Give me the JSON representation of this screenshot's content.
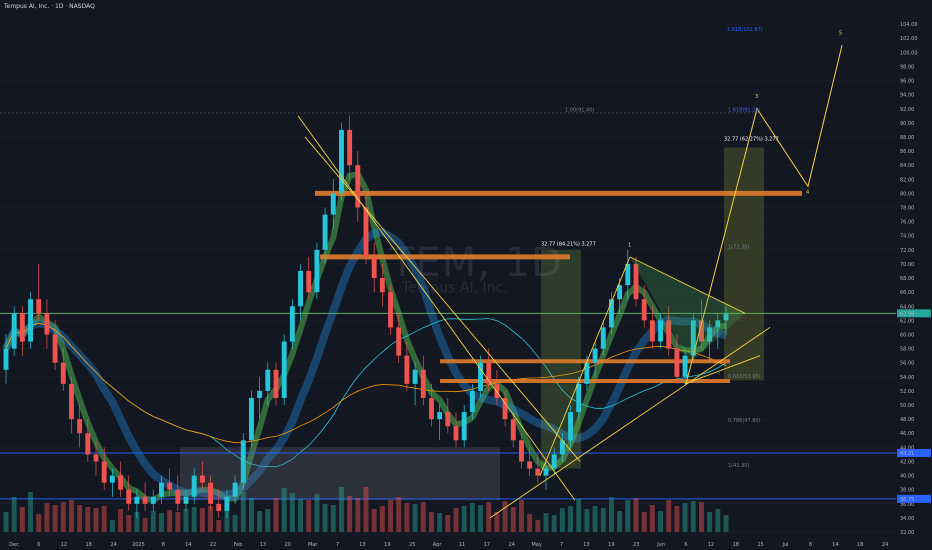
{
  "header": {
    "title": "Tempus AI, Inc. · 1D · NASDAQ"
  },
  "watermark": {
    "symbol": "TEM, 1D",
    "name": "Tempus AI, Inc."
  },
  "price_badges": {
    "current": "62.98",
    "blue_level": "43.21",
    "support": "36.75"
  },
  "annotations": {
    "fib_top": "1.618(102.87)",
    "fib_one": "1.00(91.40)",
    "target_label": "32.77 (62.27%) 3,277",
    "left_box_label": "32.77 (84.21%) 3,277",
    "wave1": "1",
    "wave3": "3",
    "wave4": "4",
    "wave5": "5",
    "fib_1618_right": "1.618(91.28)",
    "fib_right_72": "1(72.38)",
    "fib_right_53": "0.618(53.95)",
    "fib_right_48": "0.786(47.80)",
    "fib_right_41": "1(41.30)"
  },
  "chart_data": {
    "type": "candlestick",
    "ylim": [
      32,
      106
    ],
    "y_ticks": [
      "104.00",
      "102.00",
      "100.00",
      "98.00",
      "96.00",
      "94.00",
      "92.00",
      "90.00",
      "88.00",
      "86.00",
      "84.00",
      "82.00",
      "80.00",
      "78.00",
      "76.00",
      "74.00",
      "72.00",
      "70.00",
      "68.00",
      "66.00",
      "64.00",
      "62.00",
      "60.00",
      "58.00",
      "56.00",
      "54.00",
      "52.00",
      "50.00",
      "48.00",
      "46.00",
      "44.00",
      "42.00",
      "40.00",
      "38.00",
      "36.00",
      "34.00",
      "32.00"
    ],
    "x_ticks": [
      "Dec",
      "6",
      "12",
      "18",
      "24",
      "2025",
      "8",
      "14",
      "22",
      "Feb",
      "13",
      "20",
      "Mar",
      "7",
      "13",
      "19",
      "25",
      "Apr",
      "11",
      "17",
      "24",
      "May",
      "7",
      "13",
      "19",
      "23",
      "Jun",
      "6",
      "12",
      "18",
      "25",
      "Jul",
      "8",
      "14",
      "18",
      "24"
    ],
    "candles": [
      [
        55,
        60,
        53,
        58
      ],
      [
        58,
        64,
        57,
        63
      ],
      [
        63,
        64,
        57,
        59
      ],
      [
        59,
        66,
        58,
        65
      ],
      [
        65,
        70,
        62,
        63
      ],
      [
        63,
        65,
        58,
        60
      ],
      [
        60,
        62,
        55,
        56
      ],
      [
        56,
        58,
        52,
        53
      ],
      [
        53,
        54,
        46,
        48
      ],
      [
        48,
        50,
        44,
        46
      ],
      [
        46,
        48,
        42,
        43
      ],
      [
        43,
        45,
        40,
        42
      ],
      [
        42,
        44,
        38,
        39
      ],
      [
        39,
        41,
        37,
        40
      ],
      [
        40,
        42,
        37,
        38
      ],
      [
        38,
        40,
        35,
        36
      ],
      [
        36,
        38,
        34,
        37
      ],
      [
        37,
        39,
        35,
        36
      ],
      [
        36,
        38,
        35,
        37
      ],
      [
        37,
        40,
        36,
        39
      ],
      [
        39,
        41,
        37,
        38
      ],
      [
        38,
        40,
        35,
        36
      ],
      [
        36,
        38,
        35,
        37
      ],
      [
        37,
        41,
        36,
        40
      ],
      [
        40,
        42,
        38,
        39
      ],
      [
        39,
        40,
        35,
        36
      ],
      [
        36,
        38,
        34,
        35
      ],
      [
        35,
        38,
        34,
        37
      ],
      [
        37,
        40,
        36,
        39
      ],
      [
        39,
        46,
        38,
        45
      ],
      [
        45,
        52,
        44,
        51
      ],
      [
        51,
        54,
        48,
        52
      ],
      [
        52,
        56,
        50,
        55
      ],
      [
        55,
        56,
        50,
        51
      ],
      [
        51,
        60,
        50,
        59
      ],
      [
        59,
        65,
        58,
        64
      ],
      [
        64,
        70,
        62,
        69
      ],
      [
        69,
        71,
        65,
        66
      ],
      [
        66,
        73,
        65,
        72
      ],
      [
        72,
        78,
        70,
        77
      ],
      [
        77,
        82,
        75,
        80
      ],
      [
        80,
        90,
        79,
        89
      ],
      [
        89,
        91,
        82,
        84
      ],
      [
        84,
        86,
        76,
        78
      ],
      [
        78,
        80,
        70,
        71
      ],
      [
        71,
        73,
        66,
        68
      ],
      [
        68,
        70,
        64,
        66
      ],
      [
        66,
        67,
        60,
        61
      ],
      [
        61,
        63,
        56,
        57
      ],
      [
        57,
        59,
        52,
        53
      ],
      [
        53,
        56,
        50,
        55
      ],
      [
        55,
        57,
        50,
        51
      ],
      [
        51,
        53,
        47,
        48
      ],
      [
        48,
        50,
        45,
        49
      ],
      [
        49,
        51,
        46,
        47
      ],
      [
        47,
        49,
        44,
        45
      ],
      [
        45,
        50,
        44,
        49
      ],
      [
        49,
        53,
        48,
        52
      ],
      [
        52,
        57,
        51,
        56
      ],
      [
        56,
        58,
        52,
        53
      ],
      [
        53,
        55,
        50,
        51
      ],
      [
        51,
        52,
        47,
        48
      ],
      [
        48,
        49,
        44,
        45
      ],
      [
        45,
        46,
        41,
        42
      ],
      [
        42,
        44,
        40,
        41
      ],
      [
        41,
        43,
        39,
        40
      ],
      [
        40,
        42,
        38,
        41
      ],
      [
        41,
        44,
        40,
        43
      ],
      [
        43,
        46,
        42,
        45
      ],
      [
        45,
        50,
        44,
        49
      ],
      [
        49,
        54,
        48,
        53
      ],
      [
        53,
        57,
        52,
        56
      ],
      [
        56,
        59,
        54,
        58
      ],
      [
        58,
        62,
        57,
        61
      ],
      [
        61,
        66,
        60,
        65
      ],
      [
        65,
        68,
        63,
        67
      ],
      [
        67,
        72,
        65,
        70
      ],
      [
        70,
        71,
        64,
        65
      ],
      [
        65,
        67,
        61,
        62
      ],
      [
        62,
        64,
        58,
        59
      ],
      [
        59,
        63,
        58,
        62
      ],
      [
        62,
        64,
        57,
        58
      ],
      [
        58,
        60,
        53,
        54
      ],
      [
        54,
        58,
        53,
        57
      ],
      [
        57,
        63,
        56,
        62
      ],
      [
        62,
        65,
        58,
        59
      ],
      [
        59,
        62,
        56,
        61
      ],
      [
        61,
        63,
        58,
        62
      ],
      [
        62,
        64,
        60,
        63
      ]
    ],
    "levels": [
      {
        "price": 91.4,
        "label": "fib 1.00"
      },
      {
        "price": 80.0,
        "label": "resistance"
      },
      {
        "price": 71.0,
        "label": "resistance"
      },
      {
        "price": 63.0,
        "label": "pivot"
      },
      {
        "price": 56.2,
        "label": "support"
      },
      {
        "price": 53.4,
        "label": "support"
      },
      {
        "price": 43.2,
        "label": "blue level"
      },
      {
        "price": 36.7,
        "label": "support"
      }
    ],
    "wave_projection": [
      {
        "label": "3",
        "price": 92.0
      },
      {
        "label": "4",
        "price": 81.0
      },
      {
        "label": "5",
        "price": 101.0
      }
    ],
    "colors": {
      "up": "#26c6da",
      "down": "#ef5350",
      "wave": "#f5d442",
      "fib": "#ff9800"
    }
  }
}
